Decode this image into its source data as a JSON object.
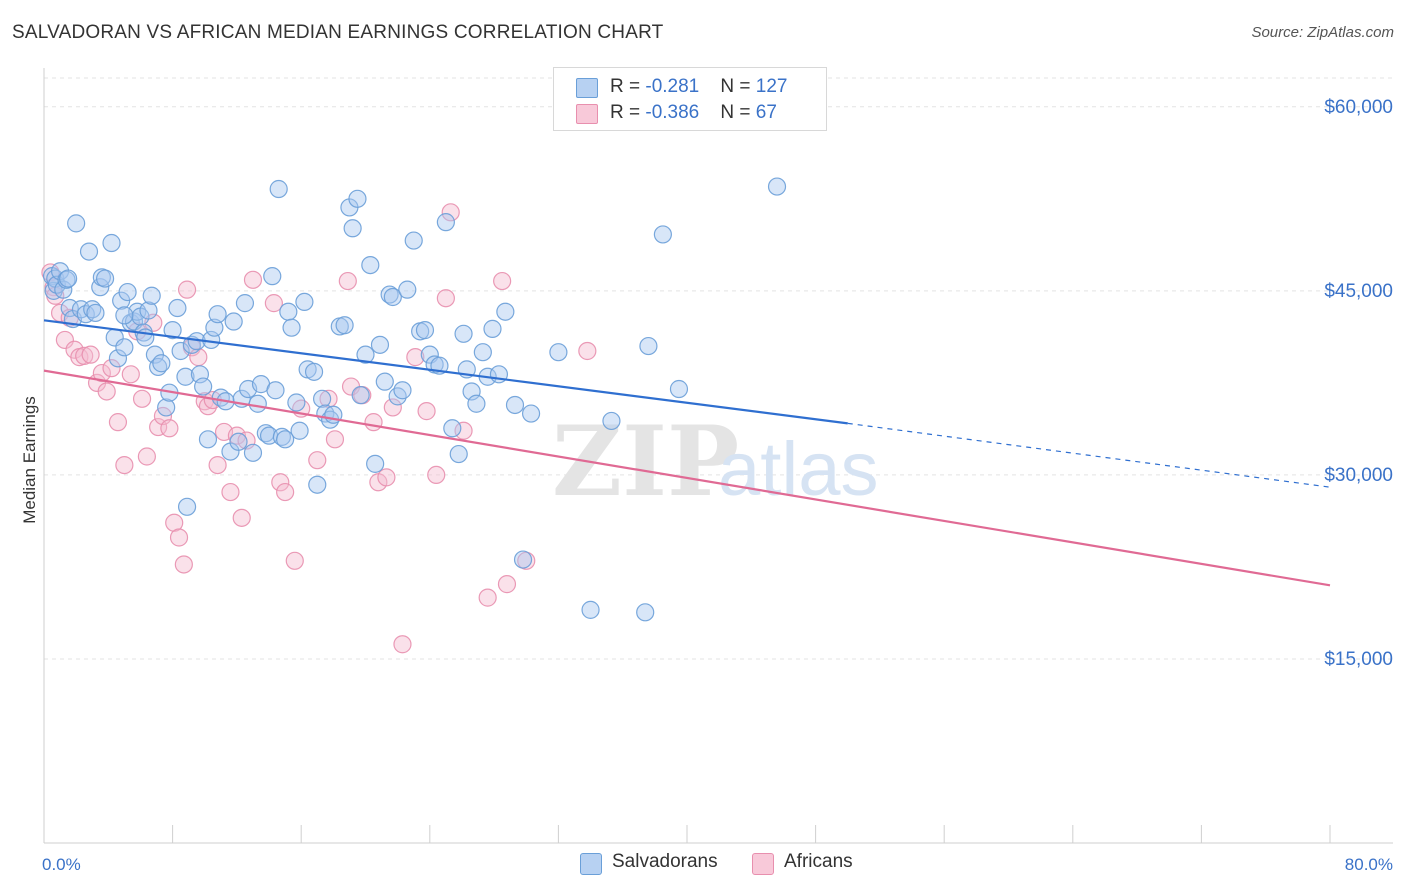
{
  "header": {
    "title": "SALVADORAN VS AFRICAN MEDIAN EARNINGS CORRELATION CHART",
    "source": "Source: ZipAtlas.com"
  },
  "legend": {
    "salvadorans": {
      "r_label": "R = ",
      "r_value": "-0.281",
      "n_label": "N = ",
      "n_value": "127"
    },
    "africans": {
      "r_label": "R = ",
      "r_value": "-0.386",
      "n_label": "N = ",
      "n_value": "67"
    }
  },
  "watermark": {
    "zip": "ZIP",
    "atlas": "atlas"
  },
  "bottom_legend": {
    "salvadorans": "Salvadorans",
    "africans": "Africans"
  },
  "colors": {
    "salvadoran_fill": "#a9c8f0",
    "salvadoran_stroke": "#6a9fd8",
    "salvadoran_line": "#2f6fd0",
    "african_fill": "#f5bcd0",
    "african_stroke": "#e88fae",
    "african_line": "#e06a94",
    "tick_label": "#3a72c8"
  },
  "chart_data": {
    "type": "scatter",
    "xlabel": "",
    "ylabel": "Median Earnings",
    "xlim": [
      0,
      80
    ],
    "ylim": [
      0,
      63000
    ],
    "x_tick_labels": {
      "min": "0.0%",
      "max": "80.0%"
    },
    "y_ticks": [
      {
        "value": 15000,
        "label": "$15,000"
      },
      {
        "value": 30000,
        "label": "$30,000"
      },
      {
        "value": 45000,
        "label": "$45,000"
      },
      {
        "value": 60000,
        "label": "$60,000"
      }
    ],
    "grid": true,
    "legend_position": "top-center",
    "series": [
      {
        "name": "Salvadorans",
        "trend": {
          "x0": 0,
          "y0": 42600,
          "x1": 50,
          "y1": 34200,
          "dashed_to_x": 80,
          "dashed_y": 29000
        },
        "points": [
          [
            0.5,
            46200
          ],
          [
            0.6,
            45000
          ],
          [
            0.7,
            46000
          ],
          [
            0.8,
            45500
          ],
          [
            1.0,
            46600
          ],
          [
            1.2,
            45100
          ],
          [
            1.4,
            45900
          ],
          [
            1.5,
            46000
          ],
          [
            1.6,
            43600
          ],
          [
            1.8,
            42700
          ],
          [
            2.0,
            50500
          ],
          [
            2.3,
            43500
          ],
          [
            2.6,
            43100
          ],
          [
            2.8,
            48200
          ],
          [
            3.0,
            43500
          ],
          [
            3.2,
            43200
          ],
          [
            3.5,
            45300
          ],
          [
            3.6,
            46100
          ],
          [
            3.8,
            46000
          ],
          [
            4.2,
            48900
          ],
          [
            4.4,
            41200
          ],
          [
            4.6,
            39500
          ],
          [
            4.8,
            44200
          ],
          [
            5.0,
            40400
          ],
          [
            5.2,
            44900
          ],
          [
            5.4,
            42400
          ],
          [
            5.6,
            42500
          ],
          [
            5.8,
            43300
          ],
          [
            6.0,
            42900
          ],
          [
            6.2,
            41600
          ],
          [
            6.3,
            41200
          ],
          [
            6.5,
            43400
          ],
          [
            6.7,
            44600
          ],
          [
            6.9,
            39800
          ],
          [
            7.1,
            38800
          ],
          [
            7.3,
            39100
          ],
          [
            7.6,
            35500
          ],
          [
            7.8,
            36700
          ],
          [
            8.0,
            41800
          ],
          [
            8.3,
            43600
          ],
          [
            8.5,
            40100
          ],
          [
            8.8,
            38000
          ],
          [
            8.9,
            27400
          ],
          [
            9.2,
            40600
          ],
          [
            9.5,
            40900
          ],
          [
            9.7,
            38200
          ],
          [
            9.9,
            37200
          ],
          [
            10.2,
            32900
          ],
          [
            10.4,
            41000
          ],
          [
            10.6,
            42000
          ],
          [
            10.8,
            43100
          ],
          [
            11.0,
            36300
          ],
          [
            11.3,
            36000
          ],
          [
            11.6,
            31900
          ],
          [
            11.8,
            42500
          ],
          [
            12.1,
            32700
          ],
          [
            12.3,
            36200
          ],
          [
            12.5,
            44000
          ],
          [
            12.7,
            37000
          ],
          [
            13.0,
            31800
          ],
          [
            13.3,
            35800
          ],
          [
            13.5,
            37400
          ],
          [
            13.8,
            33400
          ],
          [
            14.0,
            33200
          ],
          [
            14.2,
            46200
          ],
          [
            14.4,
            36900
          ],
          [
            14.6,
            53300
          ],
          [
            14.8,
            33100
          ],
          [
            15.0,
            32900
          ],
          [
            15.2,
            43300
          ],
          [
            15.4,
            42000
          ],
          [
            15.7,
            35900
          ],
          [
            15.9,
            33600
          ],
          [
            16.2,
            44100
          ],
          [
            16.4,
            38600
          ],
          [
            16.8,
            38400
          ],
          [
            17.0,
            29200
          ],
          [
            17.3,
            36200
          ],
          [
            17.5,
            35000
          ],
          [
            17.8,
            34500
          ],
          [
            18.0,
            34900
          ],
          [
            18.4,
            42100
          ],
          [
            18.7,
            42200
          ],
          [
            19.0,
            51800
          ],
          [
            19.2,
            50100
          ],
          [
            19.5,
            52500
          ],
          [
            19.7,
            36500
          ],
          [
            20.0,
            39800
          ],
          [
            20.3,
            47100
          ],
          [
            20.6,
            30900
          ],
          [
            20.9,
            40600
          ],
          [
            21.2,
            37600
          ],
          [
            21.5,
            44700
          ],
          [
            21.7,
            44500
          ],
          [
            22.0,
            36400
          ],
          [
            22.3,
            36900
          ],
          [
            22.6,
            45100
          ],
          [
            23.0,
            49100
          ],
          [
            23.4,
            41700
          ],
          [
            23.7,
            41800
          ],
          [
            24.0,
            39800
          ],
          [
            24.3,
            39000
          ],
          [
            24.6,
            38900
          ],
          [
            25.0,
            50600
          ],
          [
            25.4,
            33800
          ],
          [
            25.8,
            31700
          ],
          [
            26.1,
            41500
          ],
          [
            26.3,
            38600
          ],
          [
            26.6,
            36800
          ],
          [
            26.9,
            35800
          ],
          [
            27.3,
            40000
          ],
          [
            27.6,
            38000
          ],
          [
            27.9,
            41900
          ],
          [
            28.3,
            38200
          ],
          [
            28.7,
            43300
          ],
          [
            29.3,
            35700
          ],
          [
            29.8,
            23100
          ],
          [
            30.3,
            35000
          ],
          [
            32.0,
            40000
          ],
          [
            34.0,
            19000
          ],
          [
            35.3,
            34400
          ],
          [
            37.4,
            18800
          ],
          [
            37.6,
            40500
          ],
          [
            38.5,
            49600
          ],
          [
            39.5,
            37000
          ],
          [
            45.6,
            53500
          ],
          [
            5.0,
            43000
          ]
        ]
      },
      {
        "name": "Africans",
        "trend": {
          "x0": 0,
          "y0": 38500,
          "x1": 80,
          "y1": 21000
        },
        "points": [
          [
            0.4,
            46500
          ],
          [
            0.6,
            45300
          ],
          [
            0.7,
            44600
          ],
          [
            1.0,
            43200
          ],
          [
            1.3,
            41000
          ],
          [
            1.6,
            42800
          ],
          [
            1.9,
            40200
          ],
          [
            2.2,
            39600
          ],
          [
            2.5,
            39700
          ],
          [
            2.9,
            39800
          ],
          [
            3.3,
            37500
          ],
          [
            3.6,
            38300
          ],
          [
            3.9,
            36800
          ],
          [
            4.2,
            38700
          ],
          [
            4.6,
            34300
          ],
          [
            5.0,
            30800
          ],
          [
            5.4,
            38200
          ],
          [
            5.8,
            41700
          ],
          [
            6.1,
            36200
          ],
          [
            6.4,
            31500
          ],
          [
            6.8,
            42400
          ],
          [
            7.1,
            33900
          ],
          [
            7.4,
            34800
          ],
          [
            7.8,
            33800
          ],
          [
            8.1,
            26100
          ],
          [
            8.4,
            24900
          ],
          [
            8.7,
            22700
          ],
          [
            8.9,
            45100
          ],
          [
            9.2,
            40400
          ],
          [
            9.6,
            39600
          ],
          [
            10.0,
            36000
          ],
          [
            10.2,
            35600
          ],
          [
            10.5,
            36100
          ],
          [
            10.8,
            30800
          ],
          [
            11.2,
            33500
          ],
          [
            11.6,
            28600
          ],
          [
            12.0,
            33200
          ],
          [
            12.3,
            26500
          ],
          [
            12.6,
            32800
          ],
          [
            13.0,
            45900
          ],
          [
            14.3,
            44000
          ],
          [
            14.7,
            29400
          ],
          [
            15.0,
            28600
          ],
          [
            15.6,
            23000
          ],
          [
            16.0,
            35400
          ],
          [
            17.0,
            31200
          ],
          [
            17.7,
            36200
          ],
          [
            18.1,
            32900
          ],
          [
            18.9,
            45800
          ],
          [
            19.1,
            37200
          ],
          [
            19.8,
            36500
          ],
          [
            20.5,
            34300
          ],
          [
            20.8,
            29400
          ],
          [
            21.3,
            29800
          ],
          [
            21.7,
            35500
          ],
          [
            22.3,
            16200
          ],
          [
            23.1,
            39600
          ],
          [
            23.8,
            35200
          ],
          [
            24.4,
            30000
          ],
          [
            25.0,
            44400
          ],
          [
            25.3,
            51400
          ],
          [
            26.1,
            33600
          ],
          [
            27.6,
            20000
          ],
          [
            28.5,
            45800
          ],
          [
            28.8,
            21100
          ],
          [
            30.0,
            23000
          ],
          [
            33.8,
            40100
          ]
        ]
      }
    ]
  }
}
